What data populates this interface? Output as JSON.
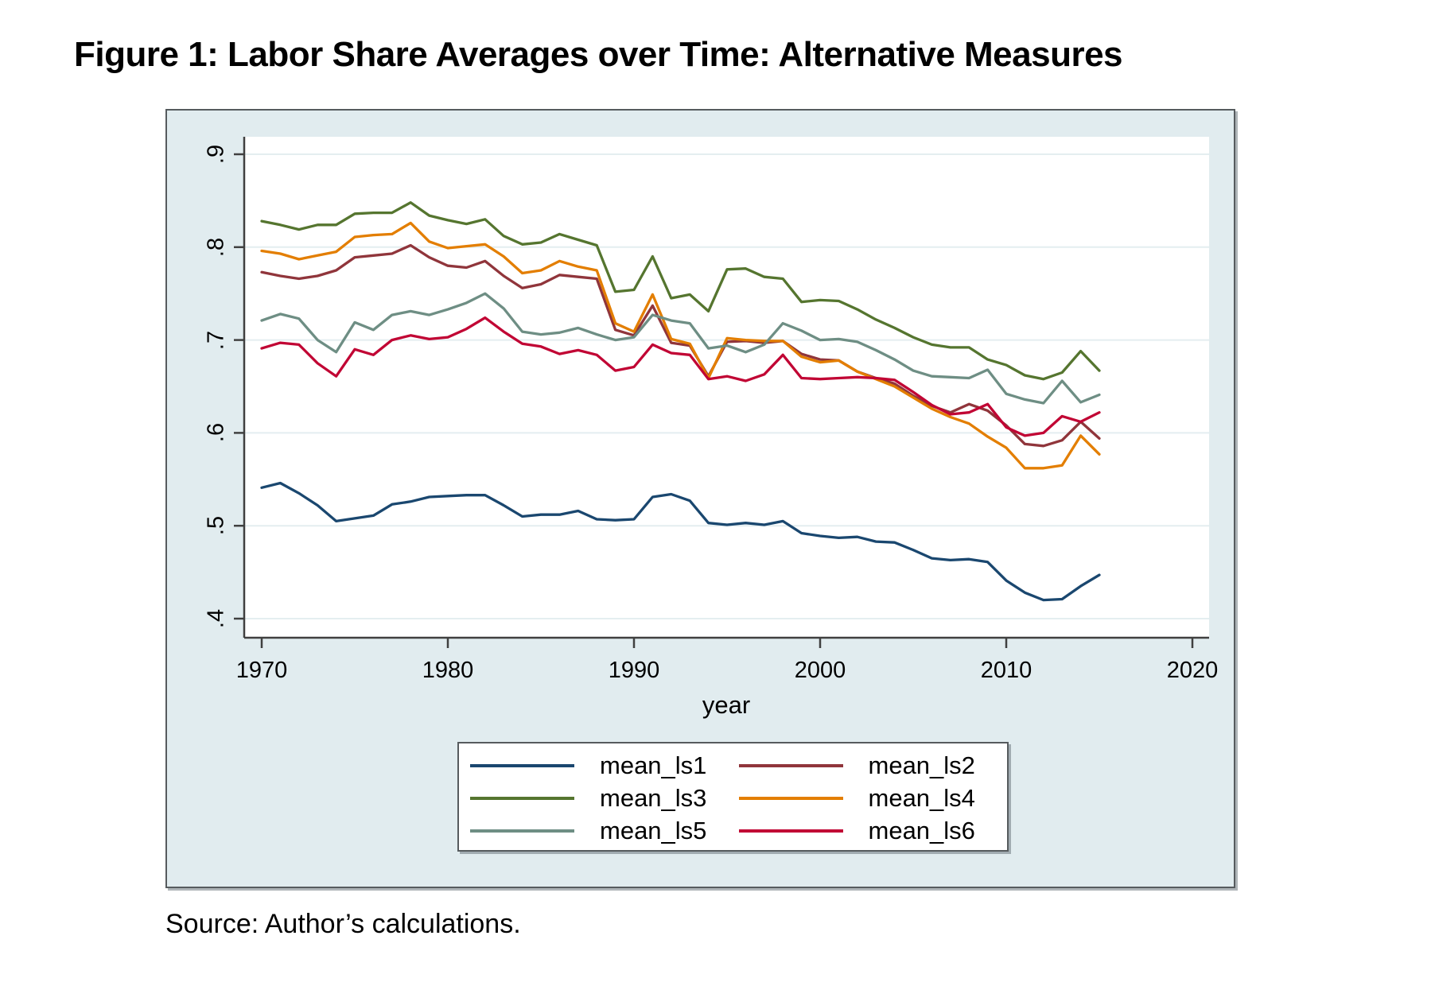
{
  "figure": {
    "title": "Figure 1: Labor Share Averages over Time: Alternative Measures",
    "source": "Source: Author’s calculations."
  },
  "colors": {
    "region_background": "#e1ecef",
    "plot_background": "#ffffff",
    "gridline": "#e4eef0",
    "axis": "#404040",
    "navy": "#1a476f",
    "maroon": "#90353b",
    "forest": "#55752f",
    "orange": "#e37e00",
    "teal_gray": "#6e8e84",
    "crimson": "#c10534"
  },
  "legend": {
    "entries": [
      {
        "label": "mean_ls1",
        "color": "#1a476f"
      },
      {
        "label": "mean_ls2",
        "color": "#90353b"
      },
      {
        "label": "mean_ls3",
        "color": "#55752f"
      },
      {
        "label": "mean_ls4",
        "color": "#e37e00"
      },
      {
        "label": "mean_ls5",
        "color": "#6e8e84"
      },
      {
        "label": "mean_ls6",
        "color": "#c10534"
      }
    ]
  },
  "chart_data": {
    "type": "line",
    "title": "Figure 1: Labor Share Averages over Time: Alternative Measures",
    "xlabel": "year",
    "ylabel": "",
    "xlim": [
      1969,
      2021
    ],
    "ylim": [
      0.38,
      0.92
    ],
    "grid": "horizontal",
    "legend_position": "below",
    "x_ticks": [
      {
        "label": "1970",
        "value": 1970
      },
      {
        "label": "1980",
        "value": 1980
      },
      {
        "label": "1990",
        "value": 1990
      },
      {
        "label": "2000",
        "value": 2000
      },
      {
        "label": "2010",
        "value": 2010
      },
      {
        "label": "2020",
        "value": 2020
      }
    ],
    "y_ticks": [
      {
        "label": ".9",
        "value": 0.9
      },
      {
        "label": ".8",
        "value": 0.8
      },
      {
        "label": ".7",
        "value": 0.7
      },
      {
        "label": ".6",
        "value": 0.6
      },
      {
        "label": ".5",
        "value": 0.5
      },
      {
        "label": ".4",
        "value": 0.4
      }
    ],
    "x": [
      1970,
      1971,
      1972,
      1973,
      1974,
      1975,
      1976,
      1977,
      1978,
      1979,
      1980,
      1981,
      1982,
      1983,
      1984,
      1985,
      1986,
      1987,
      1988,
      1989,
      1990,
      1991,
      1992,
      1993,
      1994,
      1995,
      1996,
      1997,
      1998,
      1999,
      2000,
      2001,
      2002,
      2003,
      2004,
      2005,
      2006,
      2007,
      2008,
      2009,
      2010,
      2011,
      2012,
      2013,
      2014,
      2015
    ],
    "series": [
      {
        "name": "mean_ls1",
        "color": "#1a476f",
        "values": [
          0.541,
          0.546,
          0.535,
          0.522,
          0.505,
          0.508,
          0.511,
          0.523,
          0.526,
          0.531,
          0.532,
          0.533,
          0.533,
          0.522,
          0.51,
          0.512,
          0.512,
          0.516,
          0.507,
          0.506,
          0.507,
          0.531,
          0.534,
          0.527,
          0.503,
          0.501,
          0.503,
          0.501,
          0.505,
          0.492,
          0.489,
          0.487,
          0.488,
          0.483,
          0.482,
          0.474,
          0.465,
          0.463,
          0.464,
          0.461,
          0.441,
          0.428,
          0.42,
          0.421,
          0.435,
          0.447
        ]
      },
      {
        "name": "mean_ls2",
        "color": "#90353b",
        "values": [
          0.773,
          0.769,
          0.766,
          0.769,
          0.775,
          0.789,
          0.791,
          0.793,
          0.802,
          0.789,
          0.78,
          0.778,
          0.785,
          0.769,
          0.756,
          0.76,
          0.77,
          0.768,
          0.766,
          0.711,
          0.705,
          0.737,
          0.697,
          0.694,
          0.661,
          0.698,
          0.699,
          0.697,
          0.699,
          0.685,
          0.679,
          0.678,
          0.666,
          0.659,
          0.653,
          0.64,
          0.629,
          0.622,
          0.631,
          0.624,
          0.608,
          0.588,
          0.586,
          0.592,
          0.612,
          0.594
        ]
      },
      {
        "name": "mean_ls3",
        "color": "#55752f",
        "values": [
          0.828,
          0.824,
          0.819,
          0.824,
          0.824,
          0.836,
          0.837,
          0.837,
          0.848,
          0.834,
          0.829,
          0.825,
          0.83,
          0.812,
          0.803,
          0.805,
          0.814,
          0.808,
          0.802,
          0.752,
          0.754,
          0.79,
          0.745,
          0.749,
          0.731,
          0.776,
          0.777,
          0.768,
          0.766,
          0.741,
          0.743,
          0.742,
          0.733,
          0.722,
          0.713,
          0.703,
          0.695,
          0.692,
          0.692,
          0.679,
          0.673,
          0.662,
          0.658,
          0.665,
          0.688,
          0.667
        ]
      },
      {
        "name": "mean_ls4",
        "color": "#e37e00",
        "values": [
          0.796,
          0.793,
          0.787,
          0.791,
          0.795,
          0.811,
          0.813,
          0.814,
          0.826,
          0.806,
          0.799,
          0.801,
          0.803,
          0.79,
          0.772,
          0.775,
          0.785,
          0.779,
          0.775,
          0.718,
          0.709,
          0.749,
          0.701,
          0.696,
          0.659,
          0.702,
          0.7,
          0.699,
          0.699,
          0.682,
          0.676,
          0.678,
          0.666,
          0.658,
          0.65,
          0.638,
          0.626,
          0.617,
          0.61,
          0.596,
          0.584,
          0.562,
          0.562,
          0.565,
          0.597,
          0.577
        ]
      },
      {
        "name": "mean_ls5",
        "color": "#6e8e84",
        "values": [
          0.721,
          0.728,
          0.723,
          0.7,
          0.687,
          0.719,
          0.711,
          0.727,
          0.731,
          0.727,
          0.733,
          0.74,
          0.75,
          0.734,
          0.709,
          0.706,
          0.708,
          0.713,
          0.706,
          0.7,
          0.703,
          0.727,
          0.721,
          0.718,
          0.691,
          0.694,
          0.687,
          0.695,
          0.718,
          0.71,
          0.7,
          0.701,
          0.698,
          0.689,
          0.679,
          0.667,
          0.661,
          0.66,
          0.659,
          0.668,
          0.642,
          0.636,
          0.632,
          0.656,
          0.633,
          0.641
        ]
      },
      {
        "name": "mean_ls6",
        "color": "#c10534",
        "values": [
          0.691,
          0.697,
          0.695,
          0.675,
          0.661,
          0.69,
          0.684,
          0.7,
          0.705,
          0.701,
          0.703,
          0.712,
          0.724,
          0.709,
          0.696,
          0.693,
          0.685,
          0.689,
          0.684,
          0.667,
          0.671,
          0.695,
          0.686,
          0.684,
          0.658,
          0.661,
          0.656,
          0.663,
          0.684,
          0.659,
          0.658,
          0.659,
          0.66,
          0.659,
          0.657,
          0.644,
          0.63,
          0.62,
          0.622,
          0.631,
          0.606,
          0.597,
          0.6,
          0.618,
          0.612,
          0.622
        ]
      }
    ]
  }
}
